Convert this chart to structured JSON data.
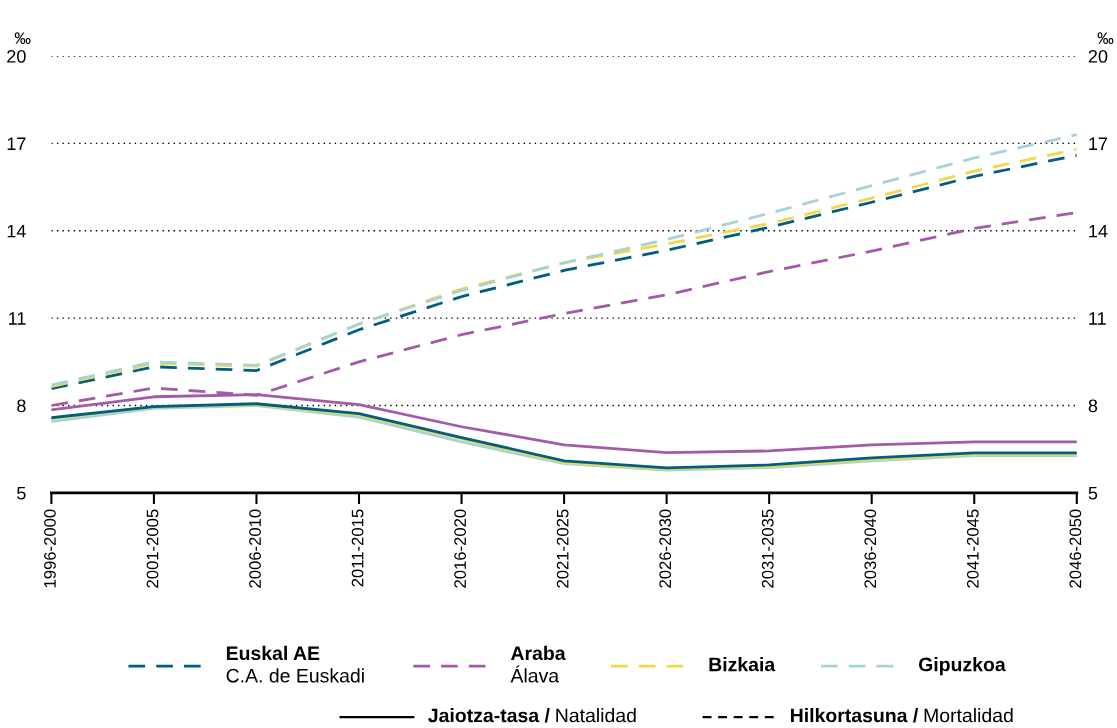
{
  "chart_data": {
    "type": "line",
    "categories": [
      "1996-2000",
      "2001-2005",
      "2006-2010",
      "2011-2015",
      "2016-2020",
      "2021-2025",
      "2026-2030",
      "2031-2035",
      "2036-2040",
      "2041-2045",
      "2046-2050"
    ],
    "ylabel": "‰",
    "y2label": "‰",
    "ylim": [
      5,
      20
    ],
    "yticks": [
      5,
      8,
      11,
      14,
      17,
      20
    ],
    "y2lim": [
      5,
      20
    ],
    "y2ticks": [
      5,
      8,
      11,
      14,
      17,
      20
    ],
    "grid": "y",
    "legend": "bottom",
    "marker": "none",
    "annotations": [
      "Jaiotza-tasa / Natalidad",
      "Hilkortasuna / Mortalidad"
    ],
    "series": [
      {
        "name": "Euskal AE\nC.A. de Euskadi",
        "color": "#005f7f",
        "line_style": "dashed",
        "values": [
          8.58,
          9.33,
          9.2,
          10.6,
          11.74,
          12.64,
          13.33,
          14.12,
          14.98,
          15.87,
          16.59
        ]
      },
      {
        "name": "Araba\nÁlava",
        "color": "#a25ba6",
        "line_style": "dashed",
        "values": [
          8.0,
          8.6,
          8.35,
          9.5,
          10.43,
          11.16,
          11.8,
          12.6,
          13.3,
          14.08,
          14.63
        ]
      },
      {
        "name": "Bizkaia",
        "color": "#f0d84a",
        "line_style": "dashed",
        "values": [
          8.65,
          9.45,
          9.35,
          10.8,
          12.0,
          12.9,
          13.55,
          14.25,
          15.12,
          16.05,
          16.8
        ]
      },
      {
        "name": "Gipuzkoa",
        "color": "#a8d3d6",
        "line_style": "dashed",
        "values": [
          8.7,
          9.5,
          9.38,
          10.8,
          11.95,
          12.9,
          13.7,
          14.6,
          15.55,
          16.5,
          17.3
        ]
      },
      {
        "color": "#a8d3d6",
        "line_style": "solid",
        "values": [
          7.45,
          7.9,
          8.0,
          7.6,
          6.75,
          6.0,
          5.78,
          5.87,
          6.1,
          6.28,
          6.28
        ]
      },
      {
        "color": "#f0d84a",
        "line_style": "solid",
        "values": [
          7.55,
          7.95,
          8.03,
          7.68,
          6.85,
          6.05,
          5.82,
          5.92,
          6.15,
          6.33,
          6.33
        ]
      },
      {
        "color": "#a25ba6",
        "line_style": "solid",
        "values": [
          7.85,
          8.3,
          8.37,
          8.03,
          7.27,
          6.65,
          6.38,
          6.44,
          6.65,
          6.75,
          6.75
        ]
      },
      {
        "color": "#005f7f",
        "line_style": "solid",
        "values": [
          7.58,
          7.96,
          8.06,
          7.72,
          6.9,
          6.1,
          5.86,
          5.96,
          6.2,
          6.37,
          6.37
        ]
      }
    ]
  }
}
